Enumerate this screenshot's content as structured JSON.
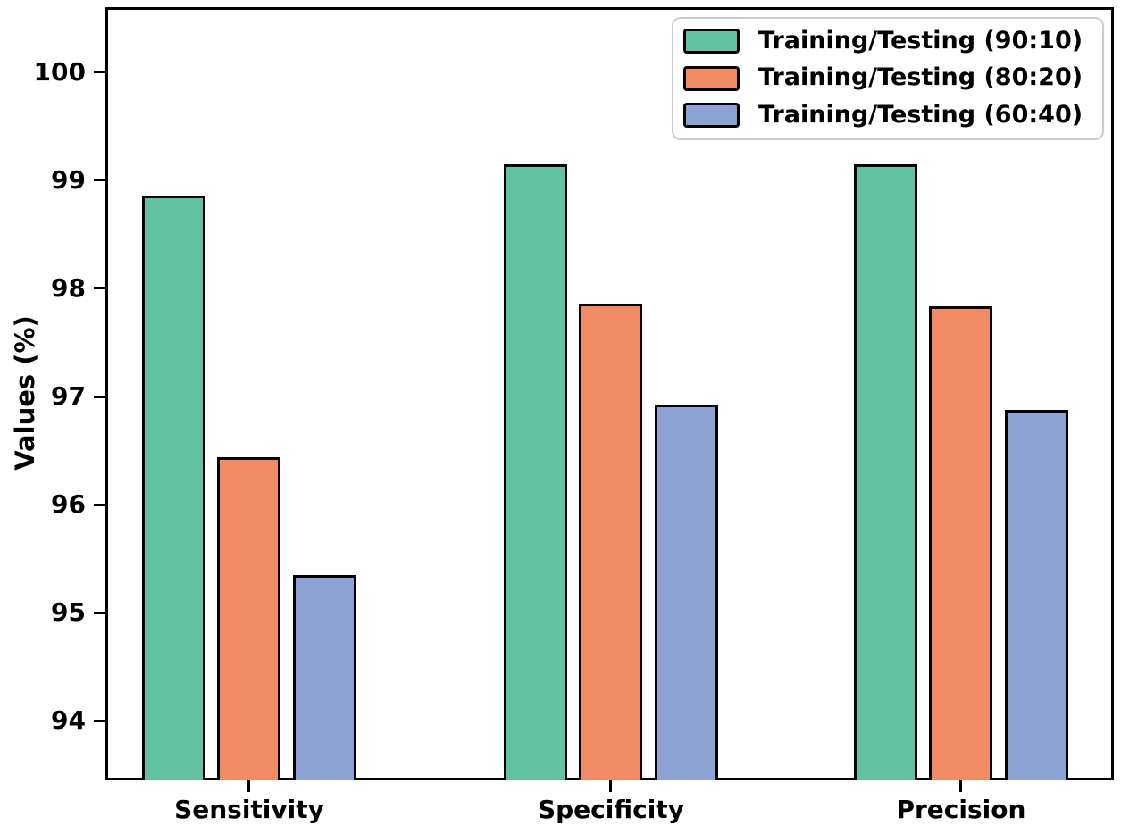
{
  "figure": {
    "background": "#ffffff"
  },
  "chart_data": {
    "type": "bar",
    "title": "",
    "xlabel": "",
    "ylabel": "Values (%)",
    "categories": [
      "Sensitivity",
      "Specificity",
      "Precision"
    ],
    "series": [
      {
        "name": "Training/Testing (90:10)",
        "color": "#62c1a0",
        "values": [
          98.86,
          99.15,
          99.15
        ]
      },
      {
        "name": "Training/Testing (80:20)",
        "color": "#f18b63",
        "values": [
          96.44,
          97.86,
          97.83
        ]
      },
      {
        "name": "Training/Testing (60:40)",
        "color": "#8ba2d2",
        "values": [
          95.35,
          96.93,
          96.88
        ]
      }
    ],
    "ylim": [
      93.45,
      100.6
    ],
    "yticks": [
      94,
      95,
      96,
      97,
      98,
      99,
      100
    ],
    "grid": false,
    "legend_position": "upper right",
    "bar_edge_color": "#000000"
  }
}
